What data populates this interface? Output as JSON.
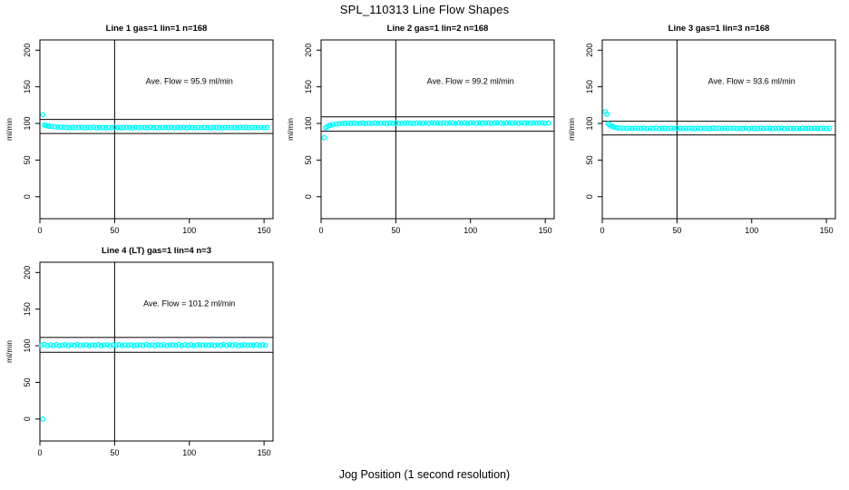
{
  "figure": {
    "title": "SPL_110313  Line Flow Shapes",
    "xlabel": "Jog Position (1 second resolution)",
    "point_color": "#00FFFF",
    "line_color": "#000000"
  },
  "chart_data": [
    {
      "type": "scatter",
      "title": "Line 1 gas=1 lin=1 n=168",
      "ylabel": "ml/min",
      "annotation": "Ave. Flow =  95.9  ml/min",
      "ave_flow_ml_min": 95.9,
      "xticks": [
        0,
        50,
        100,
        150
      ],
      "yticks": [
        0,
        50,
        100,
        150,
        200
      ],
      "xlim": [
        0,
        156
      ],
      "ylim": [
        -30,
        214
      ],
      "vline_x": 50,
      "hlines": [
        105.5,
        86.3
      ],
      "annotation_xy": [
        100,
        154
      ],
      "grid": false,
      "points": [
        [
          2,
          112
        ],
        [
          3,
          97.8
        ],
        [
          4,
          97.2
        ],
        [
          5,
          96.7
        ],
        [
          6,
          96.3
        ],
        [
          8,
          95.8
        ],
        [
          10,
          95.4
        ],
        [
          12,
          95.1
        ],
        [
          14,
          94.9
        ],
        [
          16,
          94.8
        ],
        [
          18,
          94.5
        ],
        [
          20,
          94.1
        ],
        [
          22,
          94.7
        ],
        [
          24,
          94.3
        ],
        [
          26,
          94.4
        ],
        [
          28,
          94.7
        ],
        [
          30,
          94.0
        ],
        [
          32,
          94.5
        ],
        [
          34,
          94.2
        ],
        [
          36,
          94.8
        ],
        [
          38,
          93.9
        ],
        [
          40,
          94.5
        ],
        [
          42,
          94.4
        ],
        [
          44,
          94.1
        ],
        [
          46,
          94.6
        ],
        [
          48,
          94.2
        ],
        [
          50,
          94.7
        ],
        [
          52,
          94.4
        ],
        [
          54,
          94.0
        ],
        [
          56,
          94.5
        ],
        [
          58,
          94.6
        ],
        [
          60,
          94.3
        ],
        [
          62,
          93.9
        ],
        [
          64,
          94.7
        ],
        [
          66,
          94.4
        ],
        [
          68,
          94.2
        ],
        [
          70,
          94.5
        ],
        [
          72,
          94.0
        ],
        [
          74,
          94.8
        ],
        [
          76,
          94.3
        ],
        [
          78,
          94.5
        ],
        [
          80,
          94.1
        ],
        [
          82,
          94.6
        ],
        [
          84,
          94.3
        ],
        [
          86,
          94.4
        ],
        [
          88,
          94.6
        ],
        [
          90,
          94.0
        ],
        [
          92,
          94.5
        ],
        [
          94,
          94.2
        ],
        [
          96,
          94.7
        ],
        [
          98,
          93.9
        ],
        [
          100,
          94.5
        ],
        [
          102,
          94.4
        ],
        [
          104,
          94.1
        ],
        [
          106,
          94.6
        ],
        [
          108,
          94.2
        ],
        [
          110,
          94.6
        ],
        [
          112,
          94.4
        ],
        [
          114,
          94.0
        ],
        [
          116,
          94.5
        ],
        [
          118,
          94.6
        ],
        [
          120,
          94.3
        ],
        [
          122,
          93.9
        ],
        [
          124,
          94.6
        ],
        [
          126,
          94.4
        ],
        [
          128,
          94.2
        ],
        [
          130,
          94.5
        ],
        [
          132,
          94.0
        ],
        [
          134,
          94.7
        ],
        [
          136,
          94.3
        ],
        [
          138,
          94.5
        ],
        [
          140,
          94.1
        ],
        [
          142,
          94.6
        ],
        [
          144,
          94.3
        ],
        [
          146,
          94.4
        ],
        [
          148,
          94.6
        ],
        [
          150,
          94.1
        ],
        [
          152,
          94.4
        ]
      ]
    },
    {
      "type": "scatter",
      "title": "Line 2 gas=1 lin=2 n=168",
      "ylabel": "ml/min",
      "annotation": "Ave. Flow =  99.2  ml/min",
      "ave_flow_ml_min": 99.2,
      "xticks": [
        0,
        50,
        100,
        150
      ],
      "yticks": [
        0,
        50,
        100,
        150,
        200
      ],
      "xlim": [
        0,
        156
      ],
      "ylim": [
        -30,
        214
      ],
      "vline_x": 50,
      "hlines": [
        109.1,
        89.3
      ],
      "annotation_xy": [
        100,
        154
      ],
      "grid": false,
      "points": [
        [
          2,
          80.5
        ],
        [
          3,
          94.0
        ],
        [
          4,
          95.5
        ],
        [
          5,
          96.8
        ],
        [
          6,
          97.6
        ],
        [
          8,
          98.6
        ],
        [
          10,
          99.2
        ],
        [
          12,
          99.6
        ],
        [
          14,
          99.9
        ],
        [
          16,
          100.0
        ],
        [
          18,
          100.3
        ],
        [
          20,
          100.0
        ],
        [
          22,
          100.5
        ],
        [
          24,
          100.1
        ],
        [
          26,
          100.2
        ],
        [
          28,
          100.5
        ],
        [
          30,
          99.9
        ],
        [
          32,
          100.3
        ],
        [
          34,
          100.1
        ],
        [
          36,
          100.6
        ],
        [
          38,
          99.9
        ],
        [
          40,
          100.4
        ],
        [
          42,
          100.3
        ],
        [
          44,
          100.0
        ],
        [
          46,
          100.5
        ],
        [
          48,
          100.2
        ],
        [
          50,
          100.6
        ],
        [
          52,
          100.3
        ],
        [
          54,
          100.0
        ],
        [
          56,
          100.4
        ],
        [
          58,
          100.5
        ],
        [
          60,
          100.3
        ],
        [
          62,
          99.9
        ],
        [
          64,
          100.6
        ],
        [
          66,
          100.4
        ],
        [
          68,
          100.2
        ],
        [
          70,
          100.5
        ],
        [
          72,
          100.0
        ],
        [
          74,
          100.7
        ],
        [
          76,
          100.3
        ],
        [
          78,
          100.5
        ],
        [
          80,
          100.2
        ],
        [
          82,
          100.6
        ],
        [
          84,
          100.3
        ],
        [
          86,
          100.4
        ],
        [
          88,
          100.6
        ],
        [
          90,
          100.1
        ],
        [
          92,
          100.5
        ],
        [
          94,
          100.3
        ],
        [
          96,
          100.7
        ],
        [
          98,
          100.0
        ],
        [
          100,
          100.5
        ],
        [
          102,
          100.5
        ],
        [
          104,
          100.2
        ],
        [
          106,
          100.7
        ],
        [
          108,
          100.3
        ],
        [
          110,
          100.6
        ],
        [
          112,
          100.5
        ],
        [
          114,
          100.1
        ],
        [
          116,
          100.6
        ],
        [
          118,
          100.7
        ],
        [
          120,
          100.4
        ],
        [
          122,
          100.0
        ],
        [
          124,
          100.7
        ],
        [
          126,
          100.5
        ],
        [
          128,
          100.3
        ],
        [
          130,
          100.6
        ],
        [
          132,
          100.1
        ],
        [
          134,
          100.8
        ],
        [
          136,
          100.4
        ],
        [
          138,
          100.6
        ],
        [
          140,
          100.3
        ],
        [
          142,
          100.7
        ],
        [
          144,
          100.4
        ],
        [
          146,
          100.5
        ],
        [
          148,
          100.7
        ],
        [
          150,
          100.2
        ],
        [
          152,
          100.5
        ]
      ]
    },
    {
      "type": "scatter",
      "title": "Line 3 gas=1 lin=3 n=168",
      "ylabel": "ml/min",
      "annotation": "Ave. Flow =  93.6  ml/min",
      "ave_flow_ml_min": 93.6,
      "xticks": [
        0,
        50,
        100,
        150
      ],
      "yticks": [
        0,
        50,
        100,
        150,
        200
      ],
      "xlim": [
        0,
        156
      ],
      "ylim": [
        -30,
        214
      ],
      "vline_x": 50,
      "hlines": [
        103.0,
        84.2
      ],
      "annotation_xy": [
        100,
        154
      ],
      "grid": false,
      "points": [
        [
          2,
          116
        ],
        [
          3,
          112.5
        ],
        [
          4,
          99.5
        ],
        [
          5,
          97.8
        ],
        [
          6,
          96.5
        ],
        [
          7,
          95.5
        ],
        [
          8,
          94.8
        ],
        [
          10,
          94.0
        ],
        [
          12,
          93.6
        ],
        [
          14,
          93.4
        ],
        [
          16,
          93.3
        ],
        [
          18,
          93.4
        ],
        [
          20,
          93.0
        ],
        [
          22,
          93.6
        ],
        [
          24,
          93.2
        ],
        [
          26,
          93.3
        ],
        [
          28,
          93.6
        ],
        [
          30,
          92.9
        ],
        [
          32,
          93.4
        ],
        [
          34,
          93.1
        ],
        [
          36,
          93.7
        ],
        [
          38,
          92.8
        ],
        [
          40,
          93.4
        ],
        [
          42,
          93.3
        ],
        [
          44,
          93.0
        ],
        [
          46,
          93.5
        ],
        [
          48,
          93.1
        ],
        [
          50,
          93.6
        ],
        [
          52,
          93.3
        ],
        [
          54,
          92.9
        ],
        [
          56,
          93.4
        ],
        [
          58,
          93.5
        ],
        [
          60,
          93.2
        ],
        [
          62,
          92.8
        ],
        [
          64,
          93.6
        ],
        [
          66,
          93.3
        ],
        [
          68,
          93.1
        ],
        [
          70,
          93.4
        ],
        [
          72,
          92.9
        ],
        [
          74,
          93.7
        ],
        [
          76,
          93.2
        ],
        [
          78,
          93.4
        ],
        [
          80,
          93.0
        ],
        [
          82,
          93.5
        ],
        [
          84,
          93.2
        ],
        [
          86,
          93.3
        ],
        [
          88,
          93.5
        ],
        [
          90,
          92.9
        ],
        [
          92,
          93.4
        ],
        [
          94,
          93.1
        ],
        [
          96,
          93.6
        ],
        [
          98,
          92.8
        ],
        [
          100,
          93.4
        ],
        [
          102,
          93.3
        ],
        [
          104,
          93.0
        ],
        [
          106,
          93.5
        ],
        [
          108,
          93.1
        ],
        [
          110,
          93.5
        ],
        [
          112,
          93.3
        ],
        [
          114,
          92.9
        ],
        [
          116,
          93.4
        ],
        [
          118,
          93.5
        ],
        [
          120,
          93.2
        ],
        [
          122,
          92.8
        ],
        [
          124,
          93.5
        ],
        [
          126,
          93.3
        ],
        [
          128,
          93.1
        ],
        [
          130,
          93.4
        ],
        [
          132,
          92.9
        ],
        [
          134,
          93.6
        ],
        [
          136,
          93.2
        ],
        [
          138,
          93.4
        ],
        [
          140,
          93.0
        ],
        [
          142,
          93.5
        ],
        [
          144,
          93.2
        ],
        [
          146,
          93.3
        ],
        [
          148,
          93.5
        ],
        [
          150,
          93.0
        ],
        [
          152,
          93.3
        ]
      ]
    },
    {
      "type": "scatter",
      "title": "Line 4 (LT) gas=1 lin=4 n=3",
      "ylabel": "ml/min",
      "annotation": "Ave. Flow =  101.2  ml/min",
      "ave_flow_ml_min": 101.2,
      "xticks": [
        0,
        50,
        100,
        150
      ],
      "yticks": [
        0,
        50,
        100,
        150,
        200
      ],
      "xlim": [
        0,
        156
      ],
      "ylim": [
        -30,
        214
      ],
      "vline_x": 50,
      "hlines": [
        111.3,
        91.1
      ],
      "annotation_xy": [
        100,
        154
      ],
      "grid": false,
      "points": [
        [
          2,
          0
        ],
        [
          1,
          100.6
        ],
        [
          3,
          101.8
        ],
        [
          5,
          100.2
        ],
        [
          7,
          101.0
        ],
        [
          9,
          100.4
        ],
        [
          11,
          101.5
        ],
        [
          13,
          99.9
        ],
        [
          15,
          100.9
        ],
        [
          17,
          101.3
        ],
        [
          19,
          100.1
        ],
        [
          21,
          101.1
        ],
        [
          23,
          100.6
        ],
        [
          25,
          101.7
        ],
        [
          27,
          100.3
        ],
        [
          29,
          100.9
        ],
        [
          31,
          101.4
        ],
        [
          33,
          100.0
        ],
        [
          35,
          101.2
        ],
        [
          37,
          100.7
        ],
        [
          39,
          101.5
        ],
        [
          41,
          100.2
        ],
        [
          43,
          100.8
        ],
        [
          45,
          101.3
        ],
        [
          47,
          99.9
        ],
        [
          49,
          101.0
        ],
        [
          51,
          100.5
        ],
        [
          53,
          101.6
        ],
        [
          55,
          100.3
        ],
        [
          57,
          101.1
        ],
        [
          59,
          100.8
        ],
        [
          61,
          101.4
        ],
        [
          63,
          100.1
        ],
        [
          65,
          100.9
        ],
        [
          67,
          101.2
        ],
        [
          69,
          100.4
        ],
        [
          71,
          101.6
        ],
        [
          73,
          100.6
        ],
        [
          75,
          101.0
        ],
        [
          77,
          100.2
        ],
        [
          79,
          101.3
        ],
        [
          81,
          100.8
        ],
        [
          83,
          101.5
        ],
        [
          85,
          100.3
        ],
        [
          87,
          100.9
        ],
        [
          89,
          101.2
        ],
        [
          91,
          100.5
        ],
        [
          93,
          101.7
        ],
        [
          95,
          100.4
        ],
        [
          97,
          101.0
        ],
        [
          99,
          100.7
        ],
        [
          101,
          101.3
        ],
        [
          103,
          100.2
        ],
        [
          105,
          100.9
        ],
        [
          107,
          101.5
        ],
        [
          109,
          100.5
        ],
        [
          111,
          101.1
        ],
        [
          113,
          100.8
        ],
        [
          115,
          101.4
        ],
        [
          117,
          100.3
        ],
        [
          119,
          101.0
        ],
        [
          121,
          100.6
        ],
        [
          123,
          101.6
        ],
        [
          125,
          100.4
        ],
        [
          127,
          101.2
        ],
        [
          129,
          100.8
        ],
        [
          131,
          101.3
        ],
        [
          133,
          100.1
        ],
        [
          135,
          100.9
        ],
        [
          137,
          101.4
        ],
        [
          139,
          100.5
        ],
        [
          141,
          101.1
        ],
        [
          143,
          100.7
        ],
        [
          145,
          101.5
        ],
        [
          147,
          100.3
        ],
        [
          149,
          101.0
        ],
        [
          151,
          100.8
        ]
      ]
    }
  ]
}
